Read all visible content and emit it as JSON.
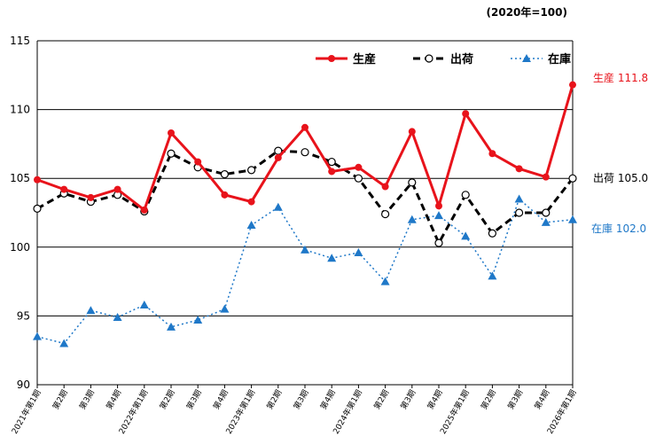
{
  "unit_note": "(2020年=100)",
  "chart_data": {
    "type": "line",
    "categories": [
      "2021年第1期",
      "第2期",
      "第3期",
      "第4期",
      "2022年第1期",
      "第2期",
      "第3期",
      "第4期",
      "2023年第1期",
      "第2期",
      "第3期",
      "第4期",
      "2024年第1期",
      "第2期",
      "第3期",
      "第4期",
      "2025年第1期",
      "第2期",
      "第3期",
      "第4期",
      "2026年第1期"
    ],
    "ylim": [
      90,
      115
    ],
    "yticks": [
      90,
      95,
      100,
      105,
      110,
      115
    ],
    "grid": true,
    "legend_position": "top-right",
    "series": [
      {
        "name": "生産",
        "color": "#e8131b",
        "marker": "filled-circle",
        "line": "solid",
        "values": [
          104.9,
          104.2,
          103.6,
          104.2,
          102.7,
          108.3,
          106.2,
          103.8,
          103.3,
          106.5,
          108.7,
          105.5,
          105.8,
          104.4,
          108.4,
          103.0,
          109.7,
          106.8,
          105.7,
          105.1,
          111.8
        ]
      },
      {
        "name": "出荷",
        "color": "#000000",
        "marker": "open-circle",
        "line": "dashed",
        "values": [
          102.8,
          103.9,
          103.3,
          103.8,
          102.6,
          106.8,
          105.8,
          105.3,
          105.6,
          107.0,
          106.9,
          106.2,
          105.0,
          102.4,
          104.7,
          100.3,
          103.8,
          101.0,
          102.5,
          102.5,
          105.0
        ]
      },
      {
        "name": "在庫",
        "color": "#1f78c8",
        "marker": "triangle",
        "line": "dotted",
        "values": [
          93.5,
          93.0,
          95.4,
          94.9,
          95.8,
          94.2,
          94.7,
          95.5,
          101.6,
          102.9,
          99.8,
          99.2,
          99.6,
          97.5,
          102.0,
          102.3,
          100.8,
          97.9,
          103.5,
          101.8,
          102.0
        ]
      }
    ],
    "end_labels": [
      {
        "series": "生産",
        "label": "生産 111.8",
        "color": "#e8131b"
      },
      {
        "series": "出荷",
        "label": "出荷 105.0",
        "color": "#000000"
      },
      {
        "series": "在庫",
        "label": "在庫 102.0",
        "color": "#1f78c8"
      }
    ]
  }
}
